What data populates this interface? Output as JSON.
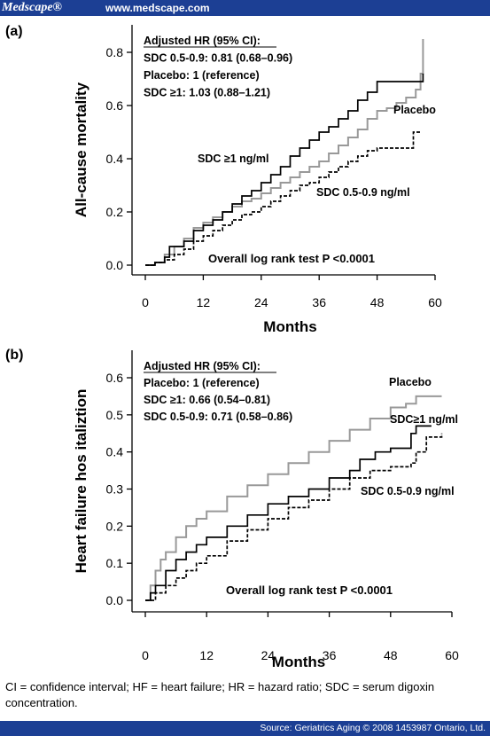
{
  "header": {
    "brand": "Medscape®",
    "url": "www.medscape.com"
  },
  "footer": {
    "source": "Source: Geriatrics Aging © 2008 1453987 Ontario, Ltd.",
    "note": "CI = confidence interval; HF = heart failure; HR = hazard ratio; SDC = serum digoxin concentration."
  },
  "chart_data": [
    {
      "type": "line",
      "panel_label": "(a)",
      "xlabel": "Months",
      "ylabel": "All-cause mortality",
      "xlim": [
        0,
        60
      ],
      "ylim": [
        0,
        0.8
      ],
      "x_ticks": [
        "0",
        "12",
        "24",
        "36",
        "48",
        "60"
      ],
      "y_ticks": [
        "0.0",
        "0.2",
        "0.4",
        "0.6",
        "0.8"
      ],
      "legend_title": "Adjusted HR (95% CI):",
      "legend_lines": [
        "SDC 0.5-0.9: 0.81 (0.68–0.96)",
        "Placebo: 1 (reference)",
        "SDC ≥1:  1.03 (0.88–1.21)"
      ],
      "annotation": "Overall log rank test P <0.0001",
      "series": [
        {
          "name": "Placebo",
          "color": "#999999",
          "style": "solid",
          "points": [
            [
              0,
              0
            ],
            [
              2,
              0.01
            ],
            [
              4,
              0.04
            ],
            [
              6,
              0.07
            ],
            [
              8,
              0.1
            ],
            [
              10,
              0.14
            ],
            [
              12,
              0.16
            ],
            [
              14,
              0.18
            ],
            [
              16,
              0.2
            ],
            [
              18,
              0.22
            ],
            [
              20,
              0.24
            ],
            [
              22,
              0.25
            ],
            [
              24,
              0.27
            ],
            [
              26,
              0.29
            ],
            [
              28,
              0.31
            ],
            [
              30,
              0.33
            ],
            [
              32,
              0.35
            ],
            [
              34,
              0.37
            ],
            [
              36,
              0.39
            ],
            [
              38,
              0.42
            ],
            [
              40,
              0.45
            ],
            [
              42,
              0.48
            ],
            [
              44,
              0.51
            ],
            [
              46,
              0.55
            ],
            [
              48,
              0.58
            ],
            [
              50,
              0.59
            ],
            [
              52,
              0.61
            ],
            [
              54,
              0.63
            ],
            [
              56,
              0.66
            ],
            [
              57,
              0.72
            ],
            [
              57.5,
              0.85
            ]
          ]
        },
        {
          "name": "SDC ≥1 ng/ml",
          "color": "#000000",
          "style": "solid",
          "points": [
            [
              0,
              0
            ],
            [
              2,
              0.01
            ],
            [
              4,
              0.03
            ],
            [
              5,
              0.07
            ],
            [
              7,
              0.07
            ],
            [
              8,
              0.09
            ],
            [
              10,
              0.13
            ],
            [
              12,
              0.15
            ],
            [
              14,
              0.17
            ],
            [
              16,
              0.2
            ],
            [
              18,
              0.23
            ],
            [
              20,
              0.26
            ],
            [
              22,
              0.28
            ],
            [
              24,
              0.31
            ],
            [
              26,
              0.34
            ],
            [
              28,
              0.37
            ],
            [
              30,
              0.41
            ],
            [
              32,
              0.44
            ],
            [
              34,
              0.47
            ],
            [
              36,
              0.5
            ],
            [
              38,
              0.52
            ],
            [
              40,
              0.55
            ],
            [
              42,
              0.58
            ],
            [
              44,
              0.62
            ],
            [
              46,
              0.65
            ],
            [
              48,
              0.69
            ],
            [
              50,
              0.69
            ],
            [
              52,
              0.69
            ],
            [
              54,
              0.69
            ],
            [
              56,
              0.69
            ],
            [
              57.5,
              0.72
            ]
          ]
        },
        {
          "name": "SDC 0.5-0.9 ng/ml",
          "color": "#000000",
          "style": "dashed",
          "points": [
            [
              0,
              0
            ],
            [
              2,
              0.01
            ],
            [
              4,
              0.02
            ],
            [
              6,
              0.04
            ],
            [
              8,
              0.06
            ],
            [
              10,
              0.09
            ],
            [
              12,
              0.11
            ],
            [
              14,
              0.13
            ],
            [
              16,
              0.15
            ],
            [
              18,
              0.17
            ],
            [
              20,
              0.19
            ],
            [
              22,
              0.2
            ],
            [
              24,
              0.22
            ],
            [
              26,
              0.24
            ],
            [
              28,
              0.26
            ],
            [
              30,
              0.28
            ],
            [
              32,
              0.3
            ],
            [
              34,
              0.31
            ],
            [
              36,
              0.33
            ],
            [
              38,
              0.35
            ],
            [
              40,
              0.37
            ],
            [
              42,
              0.39
            ],
            [
              44,
              0.41
            ],
            [
              46,
              0.43
            ],
            [
              48,
              0.44
            ],
            [
              52,
              0.44
            ],
            [
              55,
              0.44
            ],
            [
              55.5,
              0.5
            ],
            [
              57,
              0.5
            ]
          ]
        }
      ]
    },
    {
      "type": "line",
      "panel_label": "(b)",
      "xlabel": "Months",
      "ylabel": "Heart failure hos   italiztion",
      "xlim": [
        0,
        60
      ],
      "ylim": [
        0,
        0.6
      ],
      "x_ticks": [
        "0",
        "12",
        "24",
        "36",
        "48",
        "60"
      ],
      "y_ticks": [
        "0.0",
        "0.1",
        "0.2",
        "0.3",
        "0.4",
        "0.5",
        "0.6"
      ],
      "legend_title": "Adjusted HR (95% CI):",
      "legend_lines": [
        "Placebo: 1 (reference)",
        "SDC ≥1:  0.66 (0.54–0.81)",
        "SDC 0.5-0.9: 0.71 (0.58–0.86)"
      ],
      "annotation": "Overall log rank test P <0.0001",
      "series": [
        {
          "name": "Placebo",
          "color": "#999999",
          "style": "solid",
          "points": [
            [
              0,
              0
            ],
            [
              1,
              0.04
            ],
            [
              2,
              0.08
            ],
            [
              3,
              0.11
            ],
            [
              4,
              0.13
            ],
            [
              6,
              0.17
            ],
            [
              8,
              0.2
            ],
            [
              10,
              0.22
            ],
            [
              12,
              0.24
            ],
            [
              16,
              0.28
            ],
            [
              20,
              0.31
            ],
            [
              24,
              0.34
            ],
            [
              28,
              0.37
            ],
            [
              32,
              0.4
            ],
            [
              36,
              0.43
            ],
            [
              40,
              0.46
            ],
            [
              44,
              0.49
            ],
            [
              48,
              0.52
            ],
            [
              51,
              0.53
            ],
            [
              53,
              0.55
            ],
            [
              58,
              0.55
            ]
          ]
        },
        {
          "name": "SDC≥1 ng/ml",
          "color": "#000000",
          "style": "solid",
          "points": [
            [
              0,
              0
            ],
            [
              1,
              0.02
            ],
            [
              2,
              0.04
            ],
            [
              4,
              0.08
            ],
            [
              6,
              0.11
            ],
            [
              8,
              0.13
            ],
            [
              10,
              0.15
            ],
            [
              12,
              0.17
            ],
            [
              16,
              0.2
            ],
            [
              20,
              0.23
            ],
            [
              24,
              0.26
            ],
            [
              28,
              0.28
            ],
            [
              32,
              0.3
            ],
            [
              36,
              0.33
            ],
            [
              40,
              0.35
            ],
            [
              42,
              0.38
            ],
            [
              45,
              0.4
            ],
            [
              48,
              0.41
            ],
            [
              50,
              0.41
            ],
            [
              52,
              0.45
            ],
            [
              53,
              0.47
            ],
            [
              56,
              0.47
            ]
          ]
        },
        {
          "name": "SDC 0.5-0.9 ng/ml",
          "color": "#000000",
          "style": "dashed",
          "points": [
            [
              0,
              0
            ],
            [
              2,
              0.02
            ],
            [
              4,
              0.04
            ],
            [
              6,
              0.06
            ],
            [
              8,
              0.08
            ],
            [
              10,
              0.1
            ],
            [
              12,
              0.12
            ],
            [
              16,
              0.16
            ],
            [
              20,
              0.19
            ],
            [
              24,
              0.22
            ],
            [
              28,
              0.25
            ],
            [
              32,
              0.27
            ],
            [
              36,
              0.3
            ],
            [
              40,
              0.33
            ],
            [
              44,
              0.35
            ],
            [
              48,
              0.36
            ],
            [
              52,
              0.37
            ],
            [
              53,
              0.4
            ],
            [
              55,
              0.44
            ],
            [
              58,
              0.45
            ]
          ]
        }
      ]
    }
  ]
}
